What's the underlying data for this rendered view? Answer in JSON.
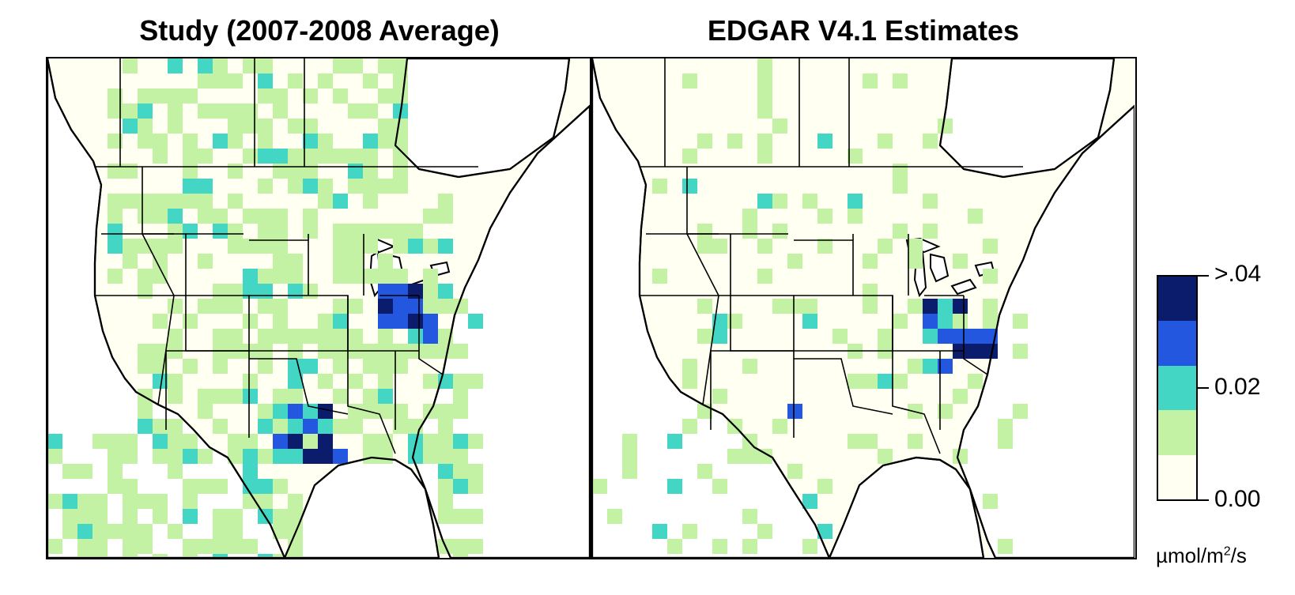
{
  "panels": [
    {
      "title": "Study (2007-2008 Average)"
    },
    {
      "title": "EDGAR V4.1 Estimates"
    }
  ],
  "legend": {
    "colors": [
      "#0a1c6b",
      "#2457e0",
      "#43d6c4",
      "#c4f2a4",
      "#fffff2"
    ],
    "tick_labels": [
      ">.04",
      "0.02",
      "0.00"
    ],
    "units_prefix": "µmol/m",
    "units_exp": "2",
    "units_suffix": "/s"
  },
  "colors": {
    "background": "#fffff2",
    "ocean": "#ffffff",
    "boundary": "#000000"
  }
}
